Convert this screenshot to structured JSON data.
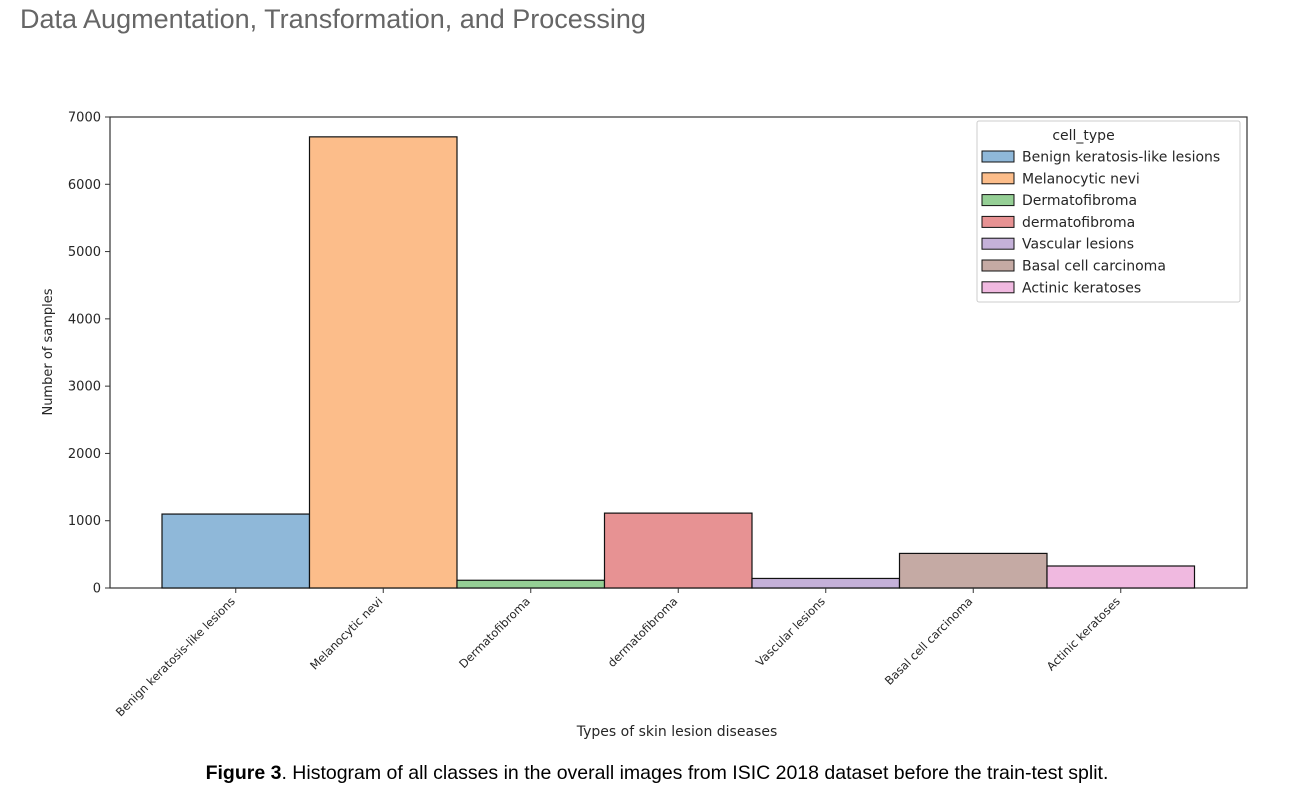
{
  "page": {
    "heading": "Data Augmentation, Transformation, and Processing",
    "caption_label": "Figure 3",
    "caption_text": ". Histogram of all classes in the overall images from ISIC 2018 dataset before the train-test split."
  },
  "chart_data": {
    "type": "bar",
    "title": "",
    "xlabel": "Types of skin lesion diseases",
    "ylabel": "Number of samples",
    "ylim": [
      0,
      7000
    ],
    "yticks": [
      0,
      1000,
      2000,
      3000,
      4000,
      5000,
      6000,
      7000
    ],
    "grid": false,
    "legend": {
      "title": "cell_type",
      "placement": "top-right"
    },
    "categories": [
      "Benign keratosis-like lesions",
      "Melanocytic nevi",
      "Dermatofibroma",
      "dermatofibroma",
      "Vascular lesions",
      "Basal cell carcinoma",
      "Actinic keratoses"
    ],
    "values": [
      1099,
      6705,
      115,
      1113,
      142,
      514,
      327
    ],
    "colors": [
      "#8fb8d9",
      "#fcbd8a",
      "#95cf95",
      "#e79293",
      "#c5b1d9",
      "#c5aaa4",
      "#f0b9e0"
    ]
  }
}
